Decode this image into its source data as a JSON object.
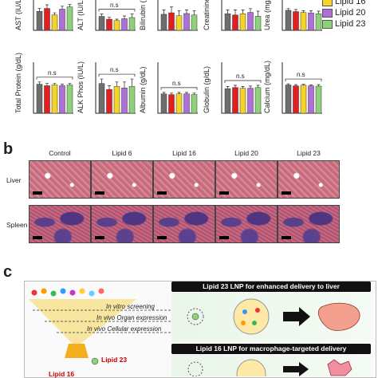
{
  "panel_a": {
    "legend": [
      {
        "label": "Lipid 16",
        "color": "#f5d327"
      },
      {
        "label": "Lipid 20",
        "color": "#b06fd6"
      },
      {
        "label": "Lipid 23",
        "color": "#8fd17a"
      }
    ],
    "bar_colors": [
      "#6e6e6e",
      "#e02020",
      "#f5d327",
      "#b06fd6",
      "#8fd17a"
    ],
    "ns_label": "n.s",
    "chart_data": [
      {
        "type": "bar",
        "ylabel": "AST (IU/L)",
        "values": [
          260,
          300,
          210,
          290,
          320
        ],
        "errors": [
          40,
          50,
          30,
          40,
          35
        ],
        "ylim": [
          0,
          350
        ],
        "ns": false
      },
      {
        "type": "bar",
        "ylabel": "ALT (IU/L)",
        "values": [
          60,
          48,
          42,
          50,
          55
        ],
        "errors": [
          10,
          8,
          6,
          12,
          15
        ],
        "ylim": [
          0,
          110
        ],
        "ns": true
      },
      {
        "type": "bar",
        "ylabel": "Bilirubin (mg/dL)",
        "values": [
          0.22,
          0.24,
          0.2,
          0.23,
          0.21
        ],
        "errors": [
          0.06,
          0.08,
          0.07,
          0.05,
          0.06
        ],
        "ylim": [
          0,
          0.35
        ],
        "ns": false
      },
      {
        "type": "bar",
        "ylabel": "Creatinine (mg/dL)",
        "values": [
          0.13,
          0.12,
          0.13,
          0.14,
          0.11
        ],
        "errors": [
          0.03,
          0.04,
          0.03,
          0.03,
          0.04
        ],
        "ylim": [
          0,
          0.2
        ],
        "ns": false
      },
      {
        "type": "bar",
        "ylabel": "Urea (mg/dL)",
        "values": [
          47,
          44,
          42,
          41,
          39
        ],
        "errors": [
          4,
          5,
          4,
          5,
          6
        ],
        "ylim": [
          0,
          60
        ],
        "ns": false
      },
      {
        "type": "bar",
        "ylabel": "Total Protein (g/dL)",
        "values": [
          3.9,
          3.7,
          3.8,
          3.7,
          3.8
        ],
        "errors": [
          0.3,
          0.3,
          0.2,
          0.2,
          0.2
        ],
        "ylim": [
          0,
          6
        ],
        "ns": true
      },
      {
        "type": "bar",
        "ylabel": "ALK Phos (IU/L)",
        "values": [
          100,
          80,
          90,
          85,
          90
        ],
        "errors": [
          15,
          12,
          15,
          20,
          25
        ],
        "ylim": [
          0,
          150
        ],
        "ns": true
      },
      {
        "type": "bar",
        "ylabel": "Albumin (g/dL)",
        "values": [
          2.6,
          2.5,
          2.6,
          2.6,
          2.5
        ],
        "errors": [
          0.2,
          0.2,
          0.2,
          0.2,
          0.2
        ],
        "ylim": [
          0,
          6
        ],
        "ns": true
      },
      {
        "type": "bar",
        "ylabel": "Globulin (g/dL)",
        "values": [
          1.1,
          1.15,
          1.12,
          1.12,
          1.15
        ],
        "errors": [
          0.1,
          0.1,
          0.08,
          0.1,
          0.1
        ],
        "ylim": [
          0,
          2
        ],
        "ns": true
      },
      {
        "type": "bar",
        "ylabel": "Calcium (mg/dL)",
        "values": [
          9.5,
          9.2,
          9.4,
          9.2,
          9.1
        ],
        "errors": [
          0.4,
          0.4,
          0.3,
          0.3,
          0.5
        ],
        "ylim": [
          0,
          15
        ],
        "ns": true
      }
    ]
  },
  "panel_b": {
    "letter": "b",
    "columns": [
      "Control",
      "Lipid 6",
      "Lipid 16",
      "Lipid 20",
      "Lipid 23"
    ],
    "rows": [
      "Liver",
      "Spleen"
    ]
  },
  "panel_c": {
    "letter": "c",
    "steps": [
      "In vitro screening",
      "In vivo Organ expression",
      "In vivo Cellular expression"
    ],
    "hit_1": "Lipid 23",
    "hit_2": "Lipid 16",
    "banner_1": "Lipid 23 LNP for enhanced delivery to liver",
    "banner_2": "Lipid 16 LNP for macrophage-targeted delivery"
  }
}
